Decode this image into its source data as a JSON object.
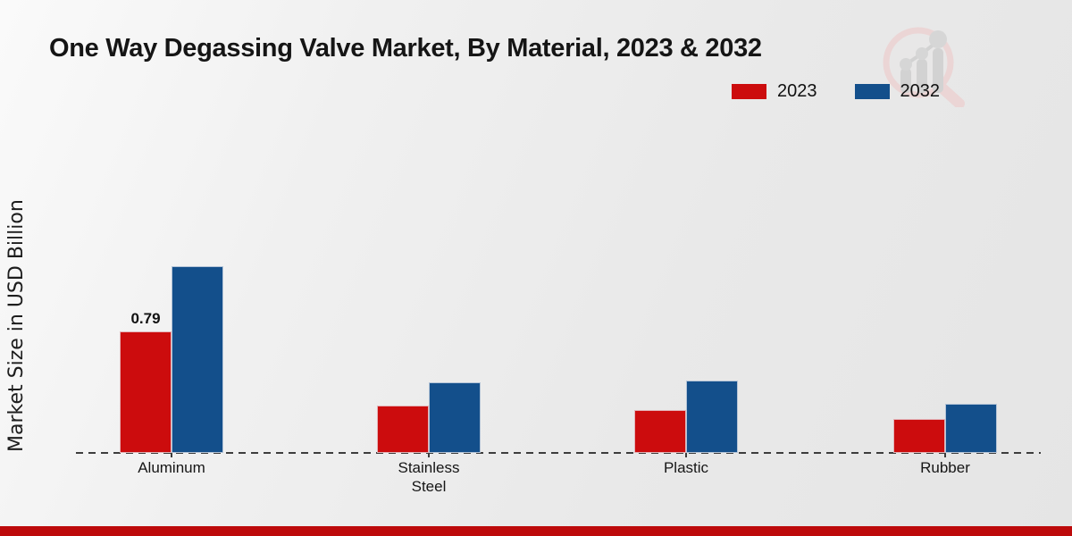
{
  "title": "One Way Degassing Valve Market, By Material, 2023 & 2032",
  "y_axis_label": "Market Size in USD Billion",
  "legend": [
    {
      "label": "2023",
      "color": "#cc0c0d"
    },
    {
      "label": "2032",
      "color": "#134f8b"
    }
  ],
  "watermark_icon": "magnifier-bar-chart-logo",
  "colors": {
    "series_2023": "#cc0c0d",
    "series_2032": "#134f8b",
    "footer_bar": "#bd0a0b",
    "baseline": "#3d3d3d"
  },
  "chart_data": {
    "type": "bar",
    "categories": [
      "Aluminum",
      "Stainless Steel",
      "Plastic",
      "Rubber"
    ],
    "series": [
      {
        "name": "2023",
        "color": "#cc0c0d",
        "values": [
          0.79,
          0.31,
          0.28,
          0.22
        ],
        "labels": [
          "0.79",
          "",
          "",
          ""
        ]
      },
      {
        "name": "2032",
        "color": "#134f8b",
        "values": [
          1.21,
          0.46,
          0.47,
          0.32
        ],
        "labels": [
          "",
          "",
          "",
          ""
        ]
      }
    ],
    "title": "One Way Degassing Valve Market, By Material, 2023 & 2032",
    "xlabel": "",
    "ylabel": "Market Size in USD Billion",
    "ylim": [
      0,
      1.4
    ],
    "grid": false,
    "legend_position": "top-right",
    "baseline_style": "dashed",
    "data_label_note": "only Aluminum 2023 bar carries a printed value"
  }
}
